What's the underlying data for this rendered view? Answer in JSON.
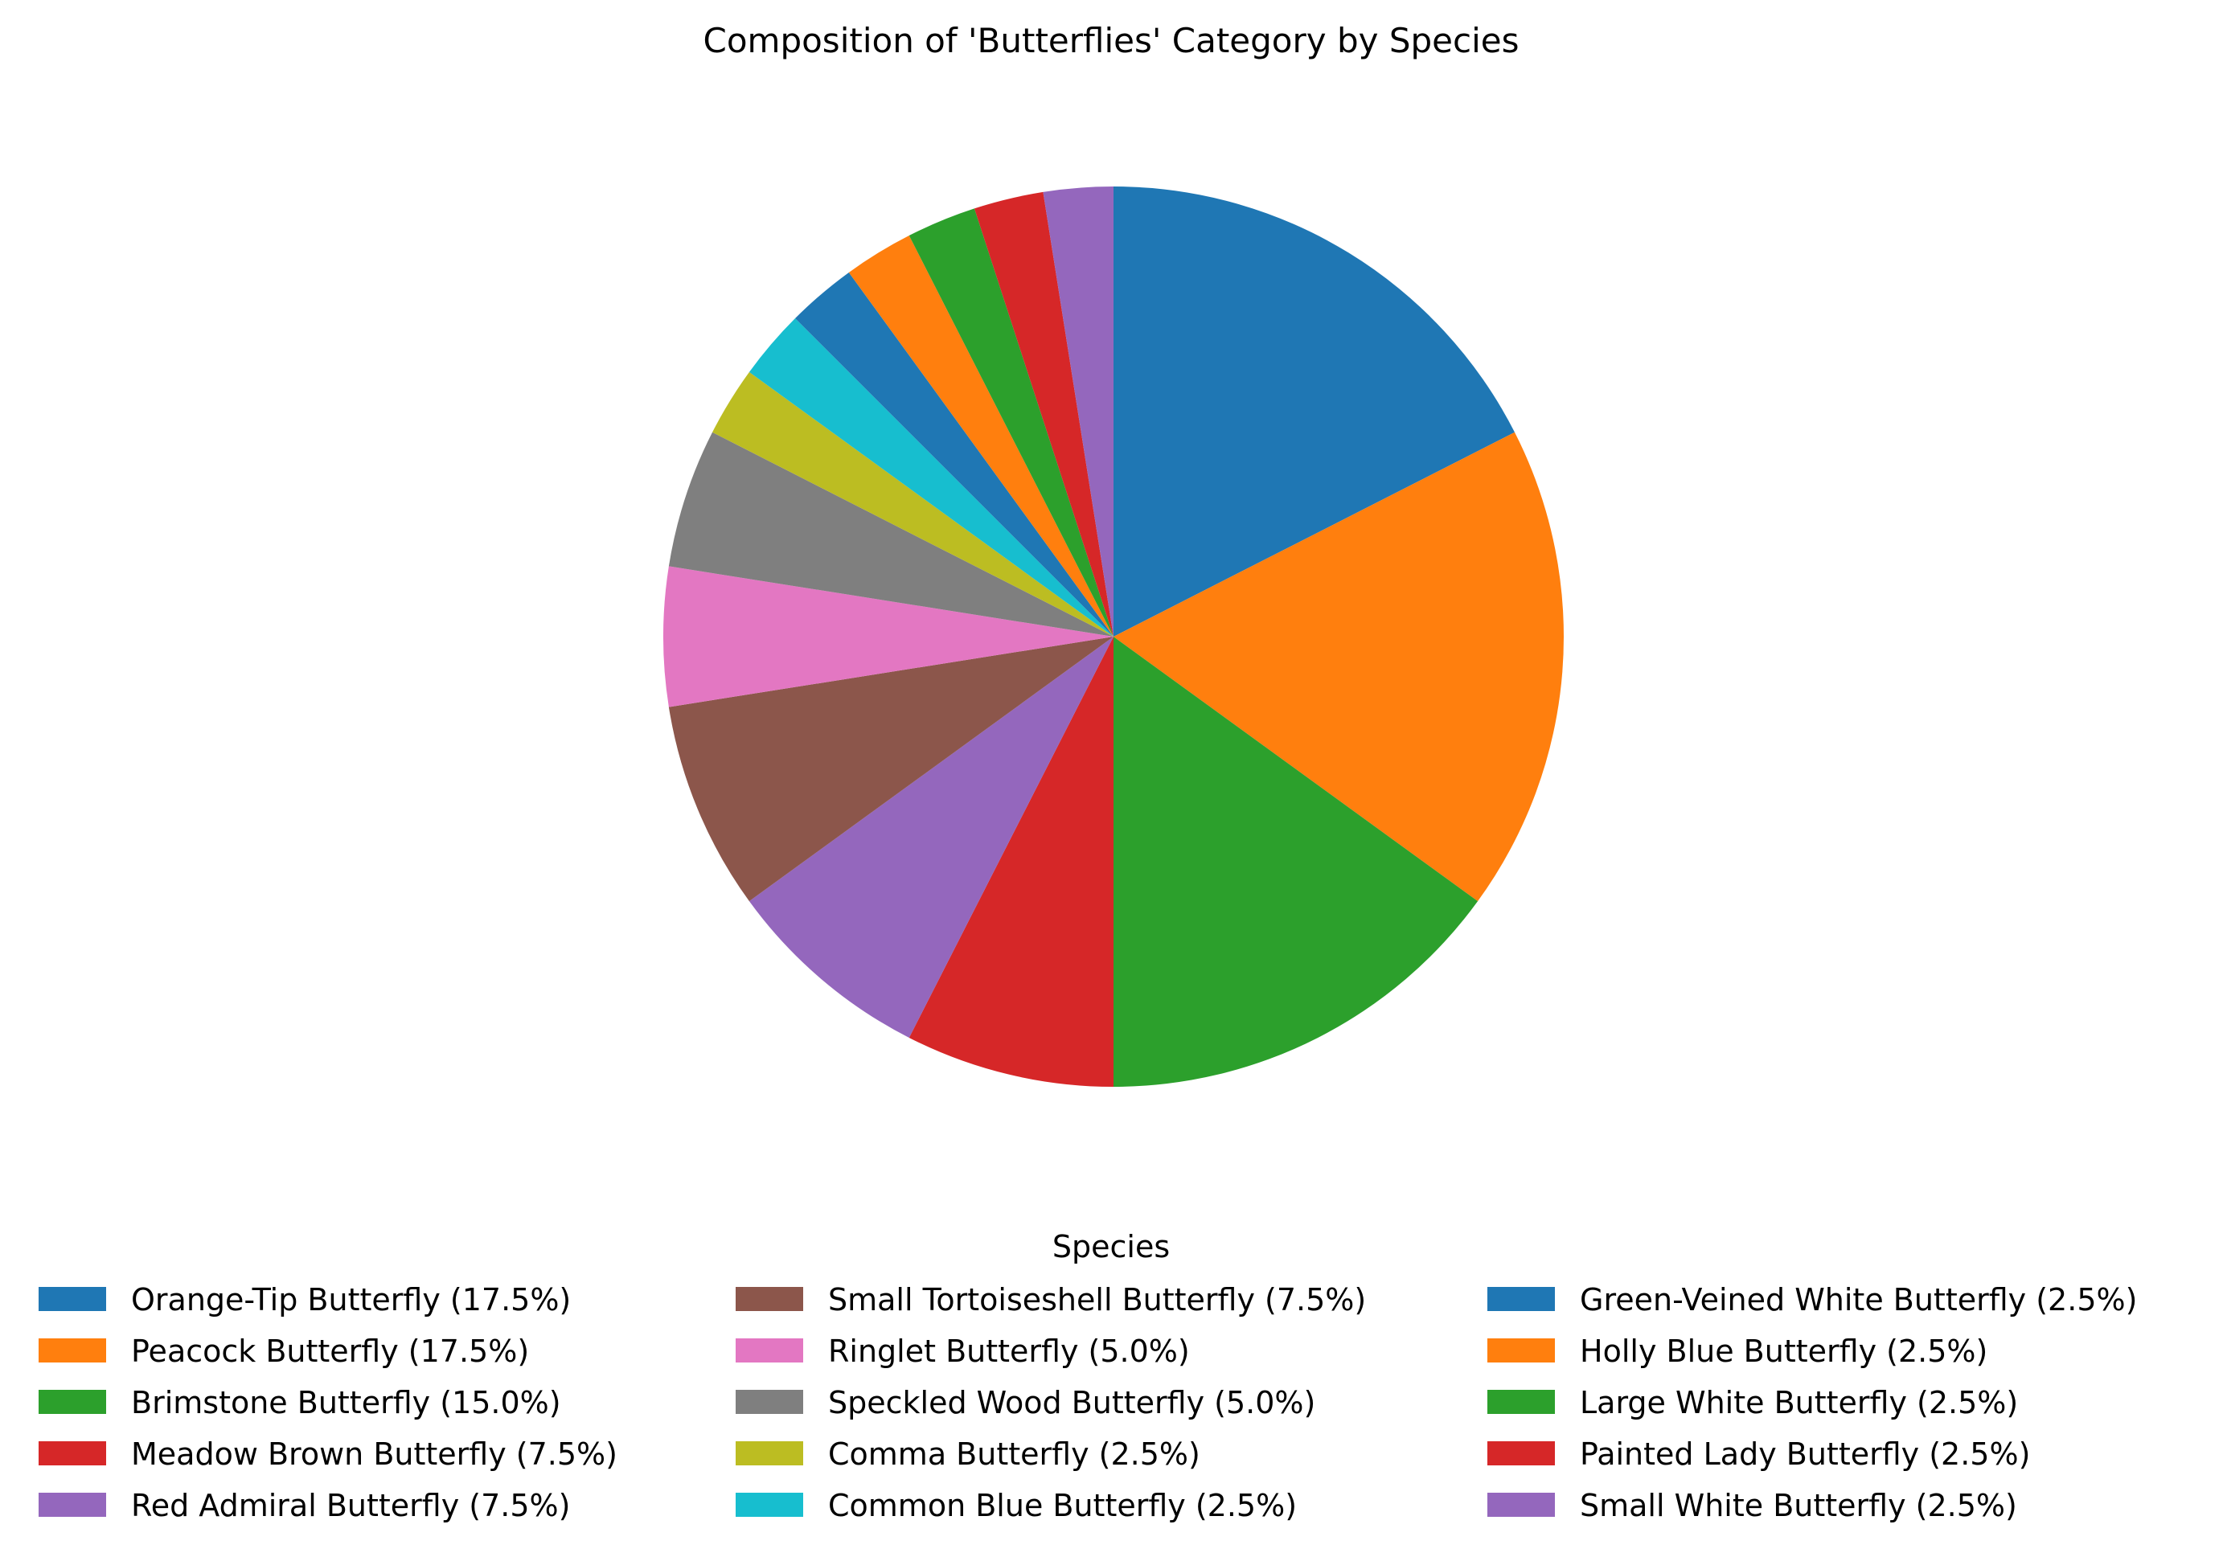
{
  "chart_data": {
    "type": "pie",
    "title": "Composition of 'Butterflies' Category by Species",
    "legend_title": "Species",
    "legend_position": "bottom",
    "start_angle_deg": 90,
    "direction": "clockwise",
    "slices": [
      {
        "label": "Orange-Tip Butterfly",
        "value": 17.5,
        "legend": "Orange-Tip Butterfly (17.5%)",
        "color": "#1f77b4"
      },
      {
        "label": "Peacock Butterfly",
        "value": 17.5,
        "legend": "Peacock Butterfly (17.5%)",
        "color": "#ff7f0e"
      },
      {
        "label": "Brimstone Butterfly",
        "value": 15.0,
        "legend": "Brimstone Butterfly (15.0%)",
        "color": "#2ca02c"
      },
      {
        "label": "Meadow Brown Butterfly",
        "value": 7.5,
        "legend": "Meadow Brown Butterfly (7.5%)",
        "color": "#d62728"
      },
      {
        "label": "Red Admiral Butterfly",
        "value": 7.5,
        "legend": "Red Admiral Butterfly (7.5%)",
        "color": "#9467bd"
      },
      {
        "label": "Small Tortoiseshell Butterfly",
        "value": 7.5,
        "legend": "Small Tortoiseshell Butterfly (7.5%)",
        "color": "#8c564b"
      },
      {
        "label": "Ringlet Butterfly",
        "value": 5.0,
        "legend": "Ringlet Butterfly (5.0%)",
        "color": "#e377c2"
      },
      {
        "label": "Speckled Wood Butterfly",
        "value": 5.0,
        "legend": "Speckled Wood Butterfly (5.0%)",
        "color": "#7f7f7f"
      },
      {
        "label": "Comma Butterfly",
        "value": 2.5,
        "legend": "Comma Butterfly (2.5%)",
        "color": "#bcbd22"
      },
      {
        "label": "Common Blue Butterfly",
        "value": 2.5,
        "legend": "Common Blue Butterfly (2.5%)",
        "color": "#17becf"
      },
      {
        "label": "Green-Veined White Butterfly",
        "value": 2.5,
        "legend": "Green-Veined White Butterfly (2.5%)",
        "color": "#1f77b4"
      },
      {
        "label": "Holly Blue Butterfly",
        "value": 2.5,
        "legend": "Holly Blue Butterfly (2.5%)",
        "color": "#ff7f0e"
      },
      {
        "label": "Large White Butterfly",
        "value": 2.5,
        "legend": "Large White Butterfly (2.5%)",
        "color": "#2ca02c"
      },
      {
        "label": "Painted Lady Butterfly",
        "value": 2.5,
        "legend": "Painted Lady Butterfly (2.5%)",
        "color": "#d62728"
      },
      {
        "label": "Small White Butterfly",
        "value": 2.5,
        "legend": "Small White Butterfly (2.5%)",
        "color": "#9467bd"
      }
    ]
  }
}
